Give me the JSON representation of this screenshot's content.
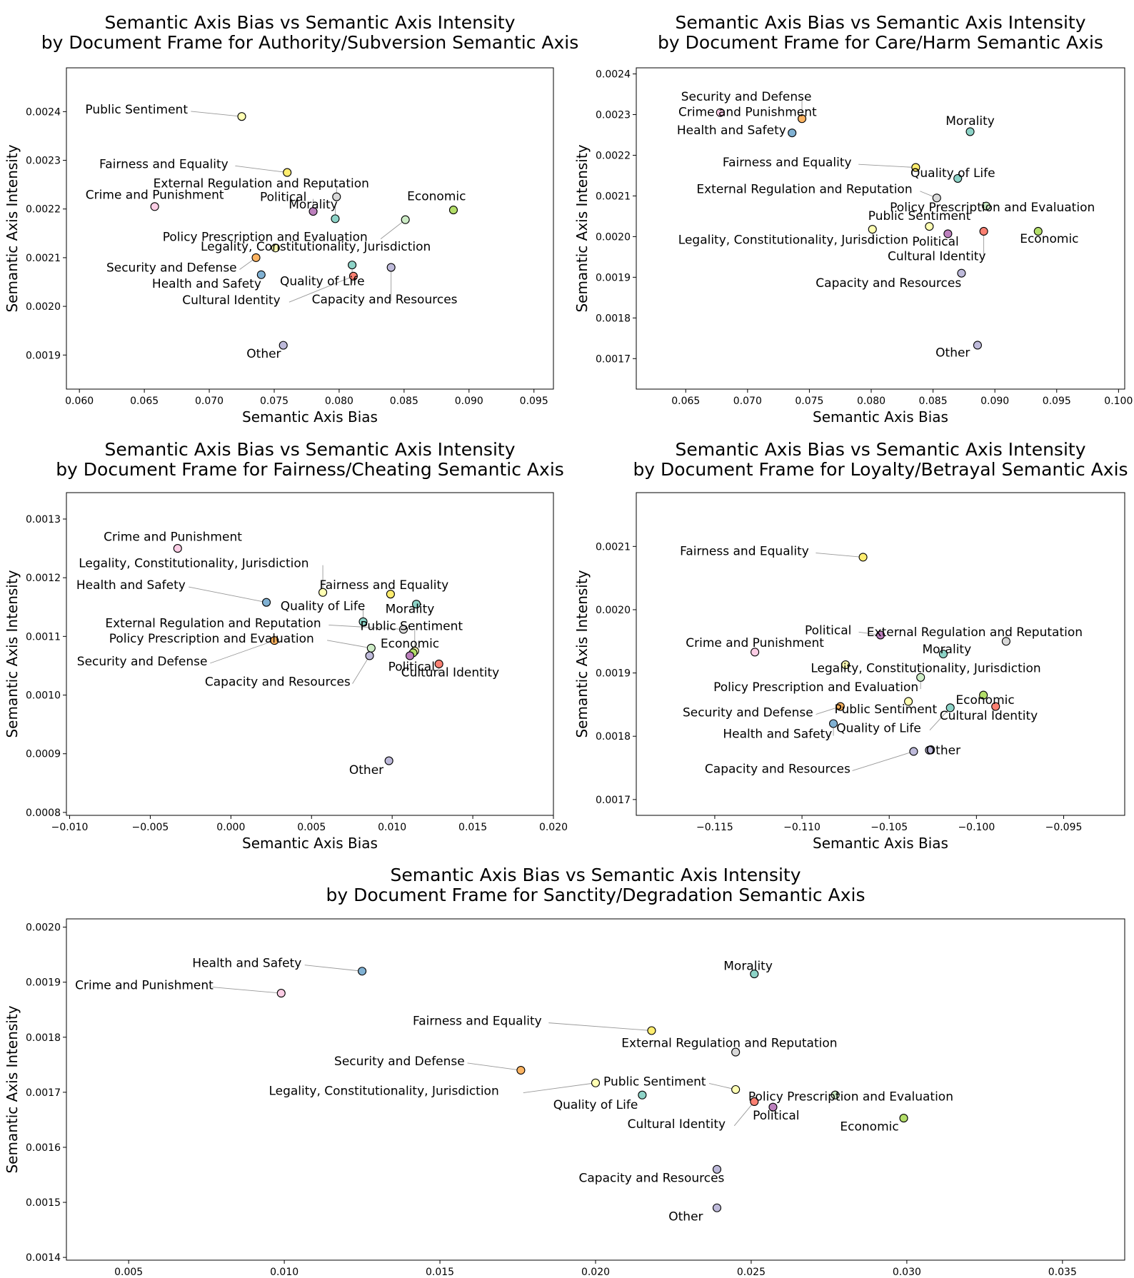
{
  "frame_colors": {
    "Public Sentiment": "#ffffb3",
    "Fairness and Equality": "#ffed6f",
    "External Regulation and Reputation": "#d9d9d9",
    "Crime and Punishment": "#fccde5",
    "Political": "#bc80bd",
    "Morality": "#8dd3c7",
    "Economic": "#b3de69",
    "Policy Prescription and Evaluation": "#ccebc5",
    "Legality, Constitutionality, Jurisdiction": "#ffffb3",
    "Security and Defense": "#fdb462",
    "Health and Safety": "#80b1d3",
    "Quality of Life": "#8dd3c7",
    "Cultural Identity": "#fb8072",
    "Capacity and Resources": "#bebada",
    "Other": "#bebada"
  },
  "chart_data": [
    {
      "type": "scatter",
      "title": "Semantic Axis Bias vs Semantic Axis Intensity\nby Document Frame for Authority/Subversion Semantic Axis",
      "xlabel": "Semantic Axis Bias",
      "ylabel": "Semantic Axis Intensity",
      "xlim": [
        0.059,
        0.0965
      ],
      "ylim": [
        0.00183,
        0.00249
      ],
      "xticks": [
        0.06,
        0.065,
        0.07,
        0.075,
        0.08,
        0.085,
        0.09,
        0.095
      ],
      "xticklabels": [
        "0.060",
        "0.065",
        "0.070",
        "0.075",
        "0.080",
        "0.085",
        "0.090",
        "0.095"
      ],
      "yticks": [
        0.0019,
        0.002,
        0.0021,
        0.0022,
        0.0023,
        0.0024
      ],
      "yticklabels": [
        "0.0019",
        "0.0020",
        "0.0021",
        "0.0022",
        "0.0023",
        "0.0024"
      ],
      "grid": false,
      "points": [
        {
          "label": "Public Sentiment",
          "x": 0.0725,
          "y": 0.00239,
          "lx": 0.0644,
          "ly": 0.002405,
          "leader": true
        },
        {
          "label": "Fairness and Equality",
          "x": 0.076,
          "y": 0.002275,
          "lx": 0.0665,
          "ly": 0.002293,
          "leader": true
        },
        {
          "label": "External Regulation and Reputation",
          "x": 0.0798,
          "y": 0.002225,
          "lx": 0.074,
          "ly": 0.002253,
          "leader": true
        },
        {
          "label": "Crime and Punishment",
          "x": 0.0658,
          "y": 0.002205,
          "lx": 0.0658,
          "ly": 0.00223,
          "leader": false
        },
        {
          "label": "Political",
          "x": 0.078,
          "y": 0.002195,
          "lx": 0.0757,
          "ly": 0.002225,
          "leader": true
        },
        {
          "label": "Morality",
          "x": 0.0797,
          "y": 0.00218,
          "lx": 0.078,
          "ly": 0.00221,
          "leader": true
        },
        {
          "label": "Economic",
          "x": 0.0888,
          "y": 0.002198,
          "lx": 0.0875,
          "ly": 0.002227,
          "leader": false
        },
        {
          "label": "Policy Prescription and Evaluation",
          "x": 0.0851,
          "y": 0.002178,
          "lx": 0.0743,
          "ly": 0.002143,
          "leader": true
        },
        {
          "label": "Legality, Constitutionality, Jurisdiction",
          "x": 0.0751,
          "y": 0.00212,
          "lx": 0.0782,
          "ly": 0.002123,
          "leader": true
        },
        {
          "label": "Security and Defense",
          "x": 0.0736,
          "y": 0.0021,
          "lx": 0.0671,
          "ly": 0.00208,
          "leader": true
        },
        {
          "label": "Health and Safety",
          "x": 0.074,
          "y": 0.002065,
          "lx": 0.0698,
          "ly": 0.002047,
          "leader": false
        },
        {
          "label": "Quality of Life",
          "x": 0.081,
          "y": 0.002085,
          "lx": 0.0787,
          "ly": 0.002052,
          "leader": true
        },
        {
          "label": "Cultural Identity",
          "x": 0.0811,
          "y": 0.002062,
          "lx": 0.0717,
          "ly": 0.002013,
          "leader": true
        },
        {
          "label": "Capacity and Resources",
          "x": 0.084,
          "y": 0.00208,
          "lx": 0.0835,
          "ly": 0.002015,
          "leader": true
        },
        {
          "label": "Other",
          "x": 0.0757,
          "y": 0.00192,
          "lx": 0.0742,
          "ly": 0.001903,
          "leader": false
        }
      ]
    },
    {
      "type": "scatter",
      "title": "Semantic Axis Bias vs Semantic Axis Intensity\nby Document Frame for Care/Harm Semantic Axis",
      "xlabel": "Semantic Axis Bias",
      "ylabel": "Semantic Axis Intensity",
      "xlim": [
        0.061,
        0.1005
      ],
      "ylim": [
        0.001625,
        0.002415
      ],
      "xticks": [
        0.065,
        0.07,
        0.075,
        0.08,
        0.085,
        0.09,
        0.095,
        0.1
      ],
      "xticklabels": [
        "0.065",
        "0.070",
        "0.075",
        "0.080",
        "0.085",
        "0.090",
        "0.095",
        "0.100"
      ],
      "yticks": [
        0.0017,
        0.0018,
        0.0019,
        0.002,
        0.0021,
        0.0022,
        0.0023,
        0.0024
      ],
      "yticklabels": [
        "0.0017",
        "0.0018",
        "0.0019",
        "0.0020",
        "0.0021",
        "0.0022",
        "0.0023",
        "0.0024"
      ],
      "grid": false,
      "points": [
        {
          "label": "Security and Defense",
          "x": 0.0744,
          "y": 0.00229,
          "lx": 0.0699,
          "ly": 0.002345,
          "leader": true
        },
        {
          "label": "Crime and Punishment",
          "x": 0.0678,
          "y": 0.002305,
          "lx": 0.07,
          "ly": 0.002307,
          "leader": false
        },
        {
          "label": "Health and Safety",
          "x": 0.0736,
          "y": 0.002255,
          "lx": 0.0687,
          "ly": 0.002262,
          "leader": true
        },
        {
          "label": "Morality",
          "x": 0.088,
          "y": 0.002258,
          "lx": 0.088,
          "ly": 0.002285,
          "leader": false
        },
        {
          "label": "Fairness and Equality",
          "x": 0.0836,
          "y": 0.00217,
          "lx": 0.0732,
          "ly": 0.002183,
          "leader": true
        },
        {
          "label": "Quality of Life",
          "x": 0.087,
          "y": 0.002143,
          "lx": 0.0866,
          "ly": 0.002157,
          "leader": true
        },
        {
          "label": "External Regulation and Reputation",
          "x": 0.0853,
          "y": 0.002095,
          "lx": 0.0746,
          "ly": 0.002117,
          "leader": true
        },
        {
          "label": "Policy Prescription and Evaluation",
          "x": 0.0893,
          "y": 0.002075,
          "lx": 0.0898,
          "ly": 0.002073,
          "leader": true
        },
        {
          "label": "Public Sentiment",
          "x": 0.0847,
          "y": 0.002025,
          "lx": 0.0839,
          "ly": 0.002052,
          "leader": false
        },
        {
          "label": "Legality, Constitutionality, Jurisdiction",
          "x": 0.0801,
          "y": 0.002018,
          "lx": 0.0737,
          "ly": 0.001993,
          "leader": true
        },
        {
          "label": "Political",
          "x": 0.0862,
          "y": 0.002007,
          "lx": 0.0852,
          "ly": 0.001988,
          "leader": false
        },
        {
          "label": "Economic",
          "x": 0.0935,
          "y": 0.002013,
          "lx": 0.0944,
          "ly": 0.001995,
          "leader": false
        },
        {
          "label": "Cultural Identity",
          "x": 0.0891,
          "y": 0.002013,
          "lx": 0.0853,
          "ly": 0.001952,
          "leader": true
        },
        {
          "label": "Capacity and Resources",
          "x": 0.0873,
          "y": 0.00191,
          "lx": 0.0814,
          "ly": 0.001887,
          "leader": false
        },
        {
          "label": "Other",
          "x": 0.0886,
          "y": 0.001733,
          "lx": 0.0866,
          "ly": 0.001715,
          "leader": false
        }
      ]
    },
    {
      "type": "scatter",
      "title": "Semantic Axis Bias vs Semantic Axis Intensity\nby Document Frame for Fairness/Cheating Semantic Axis",
      "xlabel": "Semantic Axis Bias",
      "ylabel": "Semantic Axis Intensity",
      "xlim": [
        -0.0102,
        0.02
      ],
      "ylim": [
        0.000795,
        0.001345
      ],
      "xticks": [
        -0.01,
        -0.005,
        0.0,
        0.005,
        0.01,
        0.015,
        0.02
      ],
      "xticklabels": [
        "−0.010",
        "−0.005",
        "0.000",
        "0.005",
        "0.010",
        "0.015",
        "0.020"
      ],
      "yticks": [
        0.0008,
        0.0009,
        0.001,
        0.0011,
        0.0012,
        0.0013
      ],
      "yticklabels": [
        "0.0008",
        "0.0009",
        "0.0010",
        "0.0011",
        "0.0012",
        "0.0013"
      ],
      "grid": false,
      "points": [
        {
          "label": "Crime and Punishment",
          "x": -0.0033,
          "y": 0.00125,
          "lx": -0.0036,
          "ly": 0.00127,
          "leader": false
        },
        {
          "label": "Legality, Constitutionality, Jurisdiction",
          "x": 0.0057,
          "y": 0.001175,
          "lx": -0.0023,
          "ly": 0.001225,
          "leader": true
        },
        {
          "label": "Fairness and Equality",
          "x": 0.0099,
          "y": 0.001172,
          "lx": 0.0095,
          "ly": 0.001188,
          "leader": false
        },
        {
          "label": "Health and Safety",
          "x": 0.0022,
          "y": 0.001158,
          "lx": -0.0062,
          "ly": 0.001188,
          "leader": true
        },
        {
          "label": "Morality",
          "x": 0.0115,
          "y": 0.001155,
          "lx": 0.0111,
          "ly": 0.001147,
          "leader": false
        },
        {
          "label": "Quality of Life",
          "x": 0.0082,
          "y": 0.001125,
          "lx": 0.0057,
          "ly": 0.001152,
          "leader": true
        },
        {
          "label": "External Regulation and Reputation",
          "x": 0.0107,
          "y": 0.001112,
          "lx": -0.0011,
          "ly": 0.001123,
          "leader": true
        },
        {
          "label": "Public Sentiment",
          "x": 0.0114,
          "y": 0.001075,
          "lx": 0.0112,
          "ly": 0.001118,
          "leader": true
        },
        {
          "label": "Policy Prescription and Evaluation",
          "x": 0.0087,
          "y": 0.00108,
          "lx": -0.0012,
          "ly": 0.001097,
          "leader": true
        },
        {
          "label": "Security and Defense",
          "x": 0.0027,
          "y": 0.001093,
          "lx": -0.0055,
          "ly": 0.001058,
          "leader": true
        },
        {
          "label": "Economic",
          "x": 0.0113,
          "y": 0.001072,
          "lx": 0.0111,
          "ly": 0.001088,
          "leader": false
        },
        {
          "label": "Capacity and Resources",
          "x": 0.0086,
          "y": 0.001067,
          "lx": 0.0029,
          "ly": 0.001023,
          "leader": true
        },
        {
          "label": "Political",
          "x": 0.0111,
          "y": 0.001067,
          "lx": 0.0112,
          "ly": 0.001049,
          "leader": false
        },
        {
          "label": "Cultural Identity",
          "x": 0.0129,
          "y": 0.001053,
          "lx": 0.0136,
          "ly": 0.001039,
          "leader": true
        },
        {
          "label": "Other",
          "x": 0.0098,
          "y": 0.000888,
          "lx": 0.0084,
          "ly": 0.000873,
          "leader": false
        }
      ]
    },
    {
      "type": "scatter",
      "title": "Semantic Axis Bias vs Semantic Axis Intensity\nby Document Frame for Loyalty/Betrayal Semantic Axis",
      "xlabel": "Semantic Axis Bias",
      "ylabel": "Semantic Axis Intensity",
      "xlim": [
        -0.1195,
        -0.0915
      ],
      "ylim": [
        0.001675,
        0.002185
      ],
      "xticks": [
        -0.115,
        -0.11,
        -0.105,
        -0.1,
        -0.095
      ],
      "xticklabels": [
        "−0.115",
        "−0.110",
        "−0.105",
        "−0.100",
        "−0.095"
      ],
      "yticks": [
        0.0017,
        0.0018,
        0.0019,
        0.002,
        0.0021
      ],
      "yticklabels": [
        "0.0017",
        "0.0018",
        "0.0019",
        "0.0020",
        "0.0021"
      ],
      "grid": false,
      "points": [
        {
          "label": "Fairness and Equality",
          "x": -0.1065,
          "y": 0.002083,
          "lx": -0.1133,
          "ly": 0.002093,
          "leader": true
        },
        {
          "label": "Political",
          "x": -0.1055,
          "y": 0.00196,
          "lx": -0.1085,
          "ly": 0.001968,
          "leader": true
        },
        {
          "label": "External Regulation and Reputation",
          "x": -0.0983,
          "y": 0.00195,
          "lx": -0.1001,
          "ly": 0.001965,
          "leader": true
        },
        {
          "label": "Crime and Punishment",
          "x": -0.1127,
          "y": 0.001933,
          "lx": -0.1127,
          "ly": 0.001948,
          "leader": false
        },
        {
          "label": "Morality",
          "x": -0.1019,
          "y": 0.00193,
          "lx": -0.1017,
          "ly": 0.001938,
          "leader": false
        },
        {
          "label": "Legality, Constitutionality, Jurisdiction",
          "x": -0.1075,
          "y": 0.001913,
          "lx": -0.1029,
          "ly": 0.001908,
          "leader": false
        },
        {
          "label": "Policy Prescription and Evaluation",
          "x": -0.1032,
          "y": 0.001893,
          "lx": -0.1092,
          "ly": 0.001878,
          "leader": true
        },
        {
          "label": "Economic",
          "x": -0.0996,
          "y": 0.001865,
          "lx": -0.0995,
          "ly": 0.001858,
          "leader": false
        },
        {
          "label": "Public Sentiment",
          "x": -0.1039,
          "y": 0.001855,
          "lx": -0.1052,
          "ly": 0.001843,
          "leader": false
        },
        {
          "label": "Security and Defense",
          "x": -0.1078,
          "y": 0.001847,
          "lx": -0.1131,
          "ly": 0.001838,
          "leader": true
        },
        {
          "label": "Cultural Identity",
          "x": -0.0989,
          "y": 0.001847,
          "lx": -0.0993,
          "ly": 0.001833,
          "leader": false
        },
        {
          "label": "Quality of Life",
          "x": -0.1015,
          "y": 0.001845,
          "lx": -0.1056,
          "ly": 0.001813,
          "leader": true
        },
        {
          "label": "Health and Safety",
          "x": -0.1082,
          "y": 0.00182,
          "lx": -0.1114,
          "ly": 0.001804,
          "leader": true
        },
        {
          "label": "Other",
          "x": -0.1027,
          "y": 0.001778,
          "lx": -0.1019,
          "ly": 0.001778,
          "leader": false
        },
        {
          "label": "Capacity and Resources",
          "x": -0.1036,
          "y": 0.001776,
          "lx": -0.1114,
          "ly": 0.001749,
          "leader": true
        }
      ]
    },
    {
      "type": "scatter",
      "title": "Semantic Axis Bias vs Semantic Axis Intensity\nby Document Frame for Sanctity/Degradation Semantic Axis",
      "xlabel": "Semantic Axis Bias",
      "ylabel": "Semantic Axis Intensity",
      "xlim": [
        0.003,
        0.037
      ],
      "ylim": [
        0.001395,
        0.002015
      ],
      "xticks": [
        0.005,
        0.01,
        0.015,
        0.02,
        0.025,
        0.03,
        0.035
      ],
      "xticklabels": [
        "0.005",
        "0.010",
        "0.015",
        "0.020",
        "0.025",
        "0.030",
        "0.035"
      ],
      "yticks": [
        0.0014,
        0.0015,
        0.0016,
        0.0017,
        0.0018,
        0.0019,
        0.002
      ],
      "yticklabels": [
        "0.0014",
        "0.0015",
        "0.0016",
        "0.0017",
        "0.0018",
        "0.0019",
        "0.0020"
      ],
      "grid": false,
      "points": [
        {
          "label": "Health and Safety",
          "x": 0.0125,
          "y": 0.00192,
          "lx": 0.0088,
          "ly": 0.001935,
          "leader": true
        },
        {
          "label": "Crime and Punishment",
          "x": 0.0099,
          "y": 0.00188,
          "lx": 0.0055,
          "ly": 0.001895,
          "leader": true
        },
        {
          "label": "Morality",
          "x": 0.0251,
          "y": 0.001915,
          "lx": 0.0249,
          "ly": 0.00193,
          "leader": false
        },
        {
          "label": "Fairness and Equality",
          "x": 0.0218,
          "y": 0.001812,
          "lx": 0.0162,
          "ly": 0.00183,
          "leader": true
        },
        {
          "label": "External Regulation and Reputation",
          "x": 0.0245,
          "y": 0.001773,
          "lx": 0.0243,
          "ly": 0.00179,
          "leader": false
        },
        {
          "label": "Security and Defense",
          "x": 0.0176,
          "y": 0.00174,
          "lx": 0.0137,
          "ly": 0.001757,
          "leader": true
        },
        {
          "label": "Legality, Constitutionality, Jurisdiction",
          "x": 0.02,
          "y": 0.001717,
          "lx": 0.0132,
          "ly": 0.001703,
          "leader": true
        },
        {
          "label": "Public Sentiment",
          "x": 0.0245,
          "y": 0.001705,
          "lx": 0.0219,
          "ly": 0.00172,
          "leader": true
        },
        {
          "label": "Quality of Life",
          "x": 0.0215,
          "y": 0.001695,
          "lx": 0.02,
          "ly": 0.001678,
          "leader": false
        },
        {
          "label": "Policy Prescription and Evaluation",
          "x": 0.0277,
          "y": 0.001695,
          "lx": 0.0282,
          "ly": 0.001693,
          "leader": false
        },
        {
          "label": "Cultural Identity",
          "x": 0.0251,
          "y": 0.001683,
          "lx": 0.0226,
          "ly": 0.001643,
          "leader": true
        },
        {
          "label": "Political",
          "x": 0.0257,
          "y": 0.001673,
          "lx": 0.0258,
          "ly": 0.001658,
          "leader": false
        },
        {
          "label": "Economic",
          "x": 0.0299,
          "y": 0.001653,
          "lx": 0.0288,
          "ly": 0.001638,
          "leader": false
        },
        {
          "label": "Capacity and Resources",
          "x": 0.0239,
          "y": 0.00156,
          "lx": 0.0218,
          "ly": 0.001545,
          "leader": false
        },
        {
          "label": "Other",
          "x": 0.0239,
          "y": 0.00149,
          "lx": 0.0229,
          "ly": 0.001475,
          "leader": false
        }
      ]
    }
  ]
}
